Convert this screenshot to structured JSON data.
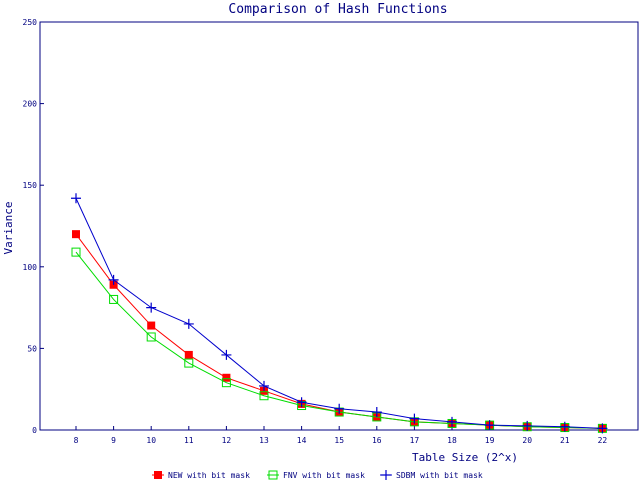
{
  "chart_data": {
    "type": "line",
    "title": "Comparison of Hash Functions",
    "xlabel": "Table Size (2^x)",
    "ylabel": "Variance",
    "x": [
      8,
      9,
      10,
      11,
      12,
      13,
      14,
      15,
      16,
      17,
      18,
      19,
      20,
      21,
      22
    ],
    "ylim": [
      0,
      250
    ],
    "yticks": [
      0,
      50,
      100,
      150,
      200,
      250
    ],
    "grid": false,
    "legend_position": "bottom",
    "series": [
      {
        "name": "NEW with bit mask",
        "color": "#ff0000",
        "marker": "filled-square",
        "values": [
          120,
          89,
          64,
          46,
          32,
          24,
          16,
          11,
          8,
          5,
          4,
          3,
          2,
          1.5,
          1
        ]
      },
      {
        "name": "FNV with bit mask",
        "color": "#00dd00",
        "marker": "open-square",
        "values": [
          109,
          80,
          57,
          41,
          29,
          21,
          15,
          11,
          8,
          5,
          4,
          3,
          2,
          1.5,
          1
        ]
      },
      {
        "name": "SDBM with bit mask",
        "color": "#0000cc",
        "marker": "plus",
        "values": [
          142,
          92,
          75,
          65,
          46,
          27,
          17,
          13,
          11,
          7,
          5,
          3,
          2.5,
          2,
          1
        ]
      }
    ]
  }
}
